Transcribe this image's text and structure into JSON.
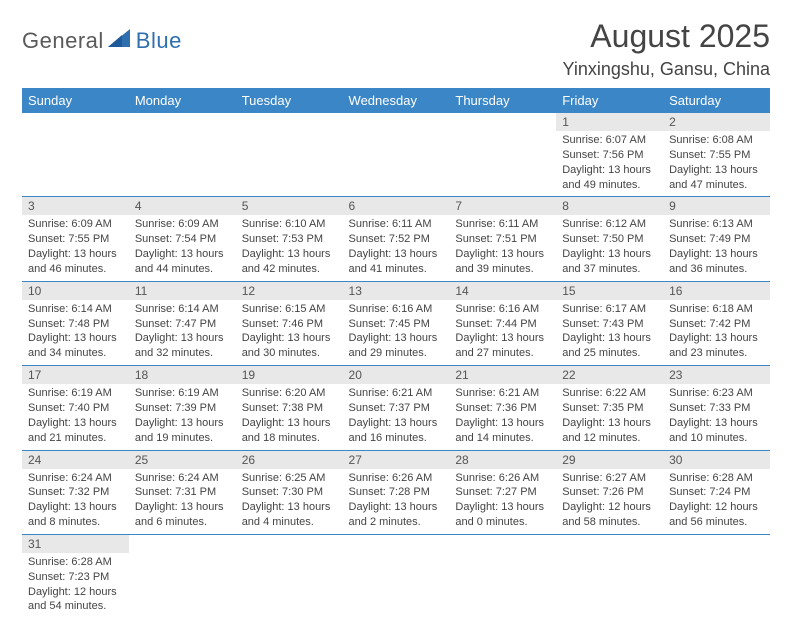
{
  "brand": {
    "left": "General",
    "right": "Blue"
  },
  "title": "August 2025",
  "location": "Yinxingshu, Gansu, China",
  "colors": {
    "header_bg": "#3b86c6",
    "header_fg": "#ffffff",
    "daynum_bg": "#e8e8e8",
    "border": "#3b86c6",
    "text": "#444444",
    "page_bg": "#ffffff"
  },
  "day_headers": [
    "Sunday",
    "Monday",
    "Tuesday",
    "Wednesday",
    "Thursday",
    "Friday",
    "Saturday"
  ],
  "weeks": [
    [
      null,
      null,
      null,
      null,
      null,
      {
        "n": "1",
        "sr": "Sunrise: 6:07 AM",
        "ss": "Sunset: 7:56 PM",
        "dl1": "Daylight: 13 hours",
        "dl2": "and 49 minutes."
      },
      {
        "n": "2",
        "sr": "Sunrise: 6:08 AM",
        "ss": "Sunset: 7:55 PM",
        "dl1": "Daylight: 13 hours",
        "dl2": "and 47 minutes."
      }
    ],
    [
      {
        "n": "3",
        "sr": "Sunrise: 6:09 AM",
        "ss": "Sunset: 7:55 PM",
        "dl1": "Daylight: 13 hours",
        "dl2": "and 46 minutes."
      },
      {
        "n": "4",
        "sr": "Sunrise: 6:09 AM",
        "ss": "Sunset: 7:54 PM",
        "dl1": "Daylight: 13 hours",
        "dl2": "and 44 minutes."
      },
      {
        "n": "5",
        "sr": "Sunrise: 6:10 AM",
        "ss": "Sunset: 7:53 PM",
        "dl1": "Daylight: 13 hours",
        "dl2": "and 42 minutes."
      },
      {
        "n": "6",
        "sr": "Sunrise: 6:11 AM",
        "ss": "Sunset: 7:52 PM",
        "dl1": "Daylight: 13 hours",
        "dl2": "and 41 minutes."
      },
      {
        "n": "7",
        "sr": "Sunrise: 6:11 AM",
        "ss": "Sunset: 7:51 PM",
        "dl1": "Daylight: 13 hours",
        "dl2": "and 39 minutes."
      },
      {
        "n": "8",
        "sr": "Sunrise: 6:12 AM",
        "ss": "Sunset: 7:50 PM",
        "dl1": "Daylight: 13 hours",
        "dl2": "and 37 minutes."
      },
      {
        "n": "9",
        "sr": "Sunrise: 6:13 AM",
        "ss": "Sunset: 7:49 PM",
        "dl1": "Daylight: 13 hours",
        "dl2": "and 36 minutes."
      }
    ],
    [
      {
        "n": "10",
        "sr": "Sunrise: 6:14 AM",
        "ss": "Sunset: 7:48 PM",
        "dl1": "Daylight: 13 hours",
        "dl2": "and 34 minutes."
      },
      {
        "n": "11",
        "sr": "Sunrise: 6:14 AM",
        "ss": "Sunset: 7:47 PM",
        "dl1": "Daylight: 13 hours",
        "dl2": "and 32 minutes."
      },
      {
        "n": "12",
        "sr": "Sunrise: 6:15 AM",
        "ss": "Sunset: 7:46 PM",
        "dl1": "Daylight: 13 hours",
        "dl2": "and 30 minutes."
      },
      {
        "n": "13",
        "sr": "Sunrise: 6:16 AM",
        "ss": "Sunset: 7:45 PM",
        "dl1": "Daylight: 13 hours",
        "dl2": "and 29 minutes."
      },
      {
        "n": "14",
        "sr": "Sunrise: 6:16 AM",
        "ss": "Sunset: 7:44 PM",
        "dl1": "Daylight: 13 hours",
        "dl2": "and 27 minutes."
      },
      {
        "n": "15",
        "sr": "Sunrise: 6:17 AM",
        "ss": "Sunset: 7:43 PM",
        "dl1": "Daylight: 13 hours",
        "dl2": "and 25 minutes."
      },
      {
        "n": "16",
        "sr": "Sunrise: 6:18 AM",
        "ss": "Sunset: 7:42 PM",
        "dl1": "Daylight: 13 hours",
        "dl2": "and 23 minutes."
      }
    ],
    [
      {
        "n": "17",
        "sr": "Sunrise: 6:19 AM",
        "ss": "Sunset: 7:40 PM",
        "dl1": "Daylight: 13 hours",
        "dl2": "and 21 minutes."
      },
      {
        "n": "18",
        "sr": "Sunrise: 6:19 AM",
        "ss": "Sunset: 7:39 PM",
        "dl1": "Daylight: 13 hours",
        "dl2": "and 19 minutes."
      },
      {
        "n": "19",
        "sr": "Sunrise: 6:20 AM",
        "ss": "Sunset: 7:38 PM",
        "dl1": "Daylight: 13 hours",
        "dl2": "and 18 minutes."
      },
      {
        "n": "20",
        "sr": "Sunrise: 6:21 AM",
        "ss": "Sunset: 7:37 PM",
        "dl1": "Daylight: 13 hours",
        "dl2": "and 16 minutes."
      },
      {
        "n": "21",
        "sr": "Sunrise: 6:21 AM",
        "ss": "Sunset: 7:36 PM",
        "dl1": "Daylight: 13 hours",
        "dl2": "and 14 minutes."
      },
      {
        "n": "22",
        "sr": "Sunrise: 6:22 AM",
        "ss": "Sunset: 7:35 PM",
        "dl1": "Daylight: 13 hours",
        "dl2": "and 12 minutes."
      },
      {
        "n": "23",
        "sr": "Sunrise: 6:23 AM",
        "ss": "Sunset: 7:33 PM",
        "dl1": "Daylight: 13 hours",
        "dl2": "and 10 minutes."
      }
    ],
    [
      {
        "n": "24",
        "sr": "Sunrise: 6:24 AM",
        "ss": "Sunset: 7:32 PM",
        "dl1": "Daylight: 13 hours",
        "dl2": "and 8 minutes."
      },
      {
        "n": "25",
        "sr": "Sunrise: 6:24 AM",
        "ss": "Sunset: 7:31 PM",
        "dl1": "Daylight: 13 hours",
        "dl2": "and 6 minutes."
      },
      {
        "n": "26",
        "sr": "Sunrise: 6:25 AM",
        "ss": "Sunset: 7:30 PM",
        "dl1": "Daylight: 13 hours",
        "dl2": "and 4 minutes."
      },
      {
        "n": "27",
        "sr": "Sunrise: 6:26 AM",
        "ss": "Sunset: 7:28 PM",
        "dl1": "Daylight: 13 hours",
        "dl2": "and 2 minutes."
      },
      {
        "n": "28",
        "sr": "Sunrise: 6:26 AM",
        "ss": "Sunset: 7:27 PM",
        "dl1": "Daylight: 13 hours",
        "dl2": "and 0 minutes."
      },
      {
        "n": "29",
        "sr": "Sunrise: 6:27 AM",
        "ss": "Sunset: 7:26 PM",
        "dl1": "Daylight: 12 hours",
        "dl2": "and 58 minutes."
      },
      {
        "n": "30",
        "sr": "Sunrise: 6:28 AM",
        "ss": "Sunset: 7:24 PM",
        "dl1": "Daylight: 12 hours",
        "dl2": "and 56 minutes."
      }
    ],
    [
      {
        "n": "31",
        "sr": "Sunrise: 6:28 AM",
        "ss": "Sunset: 7:23 PM",
        "dl1": "Daylight: 12 hours",
        "dl2": "and 54 minutes."
      },
      null,
      null,
      null,
      null,
      null,
      null
    ]
  ]
}
